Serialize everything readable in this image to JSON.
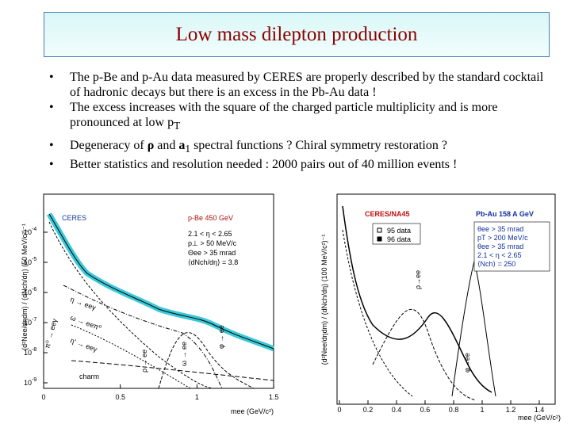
{
  "title": "Low mass dilepton production",
  "bullets": [
    [
      {
        "text": "The p-Be and p-Au data measured by CERES are properly described by the standard cocktail of hadronic decays but there is an excess in the Pb-Au data !"
      }
    ],
    [
      {
        "text": "The excess increases with the square of the charged particle multiplicity and is more pronounced at low p"
      },
      {
        "sub": "T"
      }
    ],
    [
      {
        "text": "Degeneracy of "
      },
      {
        "bold": "ρ"
      },
      {
        "text": " and "
      },
      {
        "bold": "a"
      },
      {
        "sub": "1"
      },
      {
        "text": " spectral functions ?  Chiral symmetry restoration ?"
      }
    ],
    [
      {
        "text": "Better statistics and resolution needed : 2000 pairs out of 40 million events !"
      }
    ]
  ],
  "left_plot": {
    "experiment": "CERES",
    "system": "p-Be 450 GeV",
    "cuts": [
      "2.1 < η < 2.65",
      "p⊥ > 50 MeV/c",
      "Θee > 35 mrad",
      "⟨dNch/dη⟩ = 3.8"
    ],
    "y_axis_label": "(d²Nee/dηdm) / (dNch/dη) (50 MeV/c²)⁻¹",
    "x_axis_label": "mee (GeV/c²)",
    "x_ticks": [
      "0",
      "0.5",
      "1",
      "1.5"
    ],
    "y_ticks": [
      {
        "base": "10",
        "exp": "-4"
      },
      {
        "base": "10",
        "exp": "-5"
      },
      {
        "base": "10",
        "exp": "-6"
      },
      {
        "base": "10",
        "exp": "-7"
      },
      {
        "base": "10",
        "exp": "-8"
      },
      {
        "base": "10",
        "exp": "-9"
      }
    ],
    "curve_labels": [
      "η → eeγ",
      "ω → eeπ⁰",
      "η' → eeγ",
      "π⁰ → eeγ",
      "ρ → ee",
      "ω → ee",
      "φ → ee",
      "charm"
    ]
  },
  "right_plot": {
    "experiment": "CERES/NA45",
    "system": "Pb-Au 158 A GeV",
    "legend": [
      "95 data",
      "96 data"
    ],
    "cuts": [
      "θee > 35 mrad",
      "pT > 200 MeV/c",
      "θee > 35 mrad",
      "2.1 < η < 2.65",
      "⟨Nch⟩ = 250"
    ],
    "y_axis_label": "(d²Nee/dηdm) / (dNch/dη) (100 MeV/c²)⁻¹",
    "x_axis_label": "mee (GeV/c²)",
    "x_ticks": [
      "0",
      "0.2",
      "0.4",
      "0.6",
      "0.8",
      "1",
      "1.2",
      "1.4"
    ],
    "curve_labels": [
      "ρ→ee",
      "φ→ee"
    ]
  }
}
